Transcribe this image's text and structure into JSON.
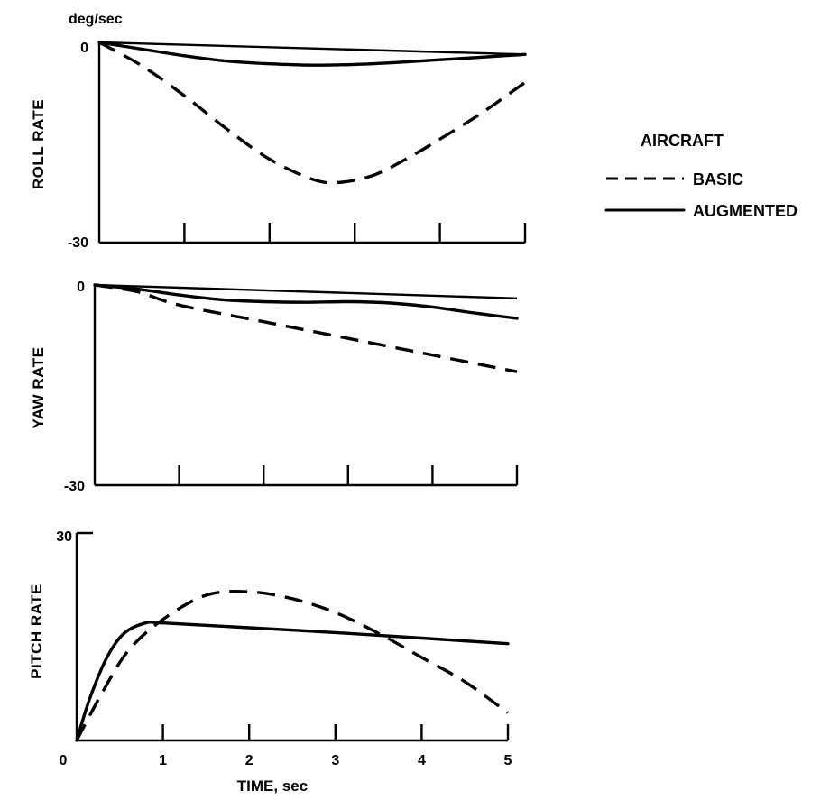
{
  "figure": {
    "unit_label": "deg/sec",
    "legend": {
      "title": "AIRCRAFT",
      "entries": [
        {
          "label": "BASIC",
          "style": "dashed"
        },
        {
          "label": "AUGMENTED",
          "style": "solid"
        }
      ]
    },
    "xlabel": "TIME, sec"
  },
  "chart_data": [
    {
      "type": "line",
      "ylabel": "ROLL RATE",
      "xlim": [
        0,
        5
      ],
      "ylim": [
        -30,
        0
      ],
      "y_tick_labels": [
        "0",
        "-30"
      ],
      "x_ticks": [
        1,
        2,
        3,
        4,
        5
      ],
      "series": [
        {
          "name": "BASIC",
          "style": "dashed",
          "x": [
            0,
            0.5,
            1.0,
            1.5,
            2.0,
            2.5,
            2.8,
            3.2,
            3.6,
            4.0,
            4.5,
            5.0
          ],
          "y": [
            0,
            -3.5,
            -8,
            -13,
            -17.5,
            -20.5,
            -21,
            -20,
            -17.5,
            -14.5,
            -10.5,
            -6
          ]
        },
        {
          "name": "AUGMENTED",
          "style": "solid",
          "x": [
            0,
            0.5,
            1.0,
            1.5,
            2.0,
            2.5,
            3.0,
            3.5,
            4.0,
            4.5,
            5.0
          ],
          "y": [
            0,
            -1,
            -2,
            -2.8,
            -3.2,
            -3.4,
            -3.3,
            -3,
            -2.6,
            -2.2,
            -1.8
          ]
        },
        {
          "name": "",
          "style": "reference",
          "x": [
            0,
            5
          ],
          "y": [
            0,
            -1.8
          ]
        }
      ]
    },
    {
      "type": "line",
      "ylabel": "YAW RATE",
      "xlim": [
        0,
        5
      ],
      "ylim": [
        -30,
        0
      ],
      "y_tick_labels": [
        "0",
        "-30"
      ],
      "x_ticks": [
        1,
        2,
        3,
        4,
        5
      ],
      "series": [
        {
          "name": "BASIC",
          "style": "dashed",
          "x": [
            0,
            0.5,
            1.0,
            2.0,
            3.0,
            4.0,
            5.0
          ],
          "y": [
            0,
            -1,
            -3,
            -5.5,
            -8,
            -10.5,
            -13
          ]
        },
        {
          "name": "AUGMENTED",
          "style": "solid",
          "x": [
            0,
            0.5,
            1.0,
            1.5,
            2.0,
            2.5,
            3.0,
            3.5,
            4.0,
            4.5,
            5.0
          ],
          "y": [
            0,
            -0.6,
            -1.5,
            -2.2,
            -2.5,
            -2.6,
            -2.5,
            -2.7,
            -3.3,
            -4.2,
            -5
          ]
        },
        {
          "name": "",
          "style": "reference",
          "x": [
            0,
            5
          ],
          "y": [
            0,
            -2
          ]
        }
      ]
    },
    {
      "type": "line",
      "ylabel": "PITCH RATE",
      "xlim": [
        0,
        5
      ],
      "ylim": [
        0,
        30
      ],
      "y_tick_labels": [
        "30",
        "0"
      ],
      "x_ticks": [
        1,
        2,
        3,
        4,
        5
      ],
      "x_tick_labels": [
        "1",
        "2",
        "3",
        "4",
        "5"
      ],
      "x_origin_label": "0",
      "series": [
        {
          "name": "BASIC",
          "style": "dashed",
          "x": [
            0,
            0.3,
            0.6,
            1.0,
            1.5,
            2.0,
            2.5,
            3.0,
            3.5,
            4.0,
            4.5,
            5.0
          ],
          "y": [
            0,
            7,
            13,
            17.5,
            21,
            21.5,
            20.5,
            18.5,
            15.5,
            12,
            8.5,
            4
          ]
        },
        {
          "name": "AUGMENTED",
          "style": "solid",
          "x": [
            0,
            0.15,
            0.35,
            0.55,
            0.8,
            1.0,
            2.0,
            3.0,
            4.0,
            5.0
          ],
          "y": [
            0,
            6,
            12,
            15.5,
            17,
            17,
            16.3,
            15.6,
            14.8,
            14
          ]
        }
      ]
    }
  ]
}
